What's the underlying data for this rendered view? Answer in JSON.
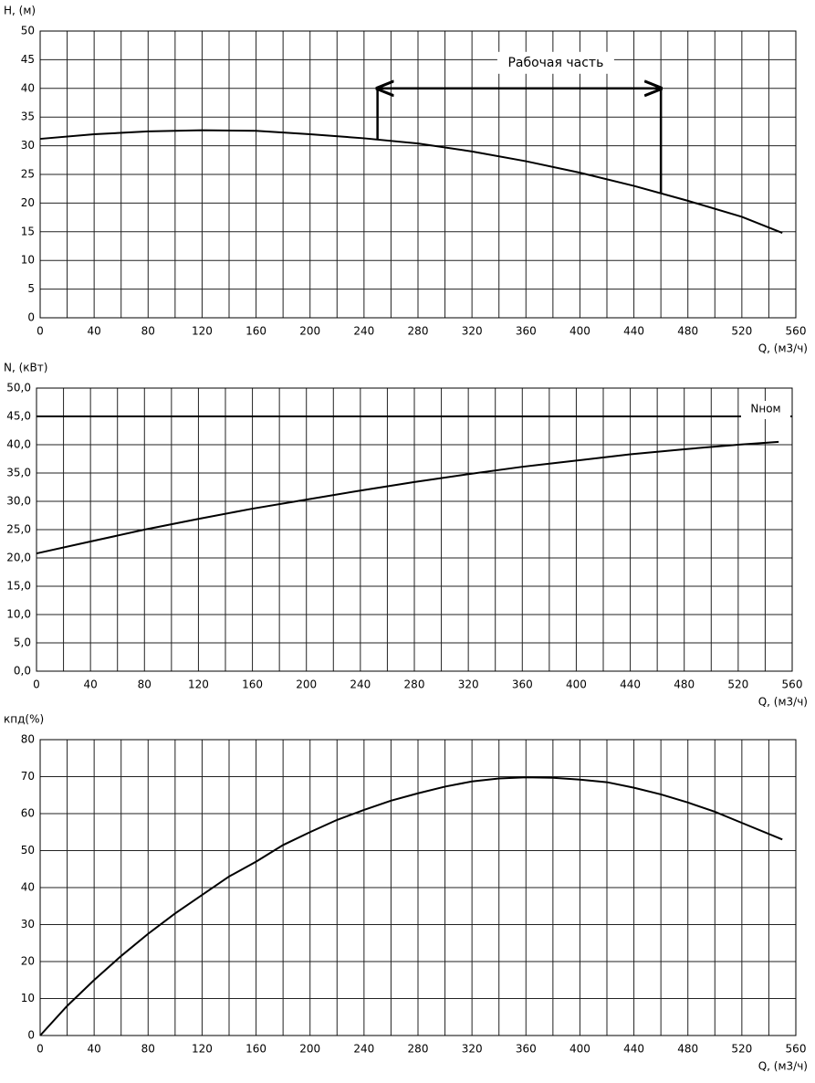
{
  "chart_data": [
    {
      "type": "line",
      "y_label": "H, (м)",
      "x_label": "Q, (м3/ч)",
      "x": [
        0,
        40,
        80,
        120,
        160,
        200,
        240,
        280,
        320,
        360,
        400,
        440,
        480,
        520,
        550
      ],
      "series": [
        {
          "color": "#000000",
          "values": [
            31.2,
            32,
            32.5,
            32.7,
            32.6,
            32,
            31.3,
            30.4,
            29,
            27.3,
            25.3,
            23,
            20.4,
            17.6,
            14.8
          ]
        }
      ],
      "xlim": [
        0,
        560
      ],
      "xticks": [
        0,
        {
          "value": 20,
          "label": null
        },
        40,
        {
          "value": 60,
          "label": null
        },
        80,
        {
          "value": 100,
          "label": null
        },
        120,
        {
          "value": 140,
          "label": null
        },
        160,
        {
          "value": 180,
          "label": null
        },
        200,
        {
          "value": 220,
          "label": null
        },
        240,
        {
          "value": 260,
          "label": null
        },
        280,
        {
          "value": 300,
          "label": null
        },
        320,
        {
          "value": 340,
          "label": null
        },
        360,
        {
          "value": 380,
          "label": null
        },
        400,
        {
          "value": 420,
          "label": null
        },
        440,
        {
          "value": 460,
          "label": null
        },
        480,
        {
          "value": 500,
          "label": null
        },
        520,
        {
          "value": 540,
          "label": null
        },
        560
      ],
      "ylim": [
        0,
        50
      ],
      "yticks": [
        0,
        5,
        10,
        15,
        20,
        25,
        30,
        35,
        40,
        45,
        50
      ],
      "grid": true,
      "annotations": [
        {
          "text": "Рабочая часть",
          "x": [
            250,
            460
          ],
          "y": 40
        }
      ]
    },
    {
      "type": "line",
      "y_label": "N, (кВт)",
      "x_label": "Q, (м3/ч)",
      "x": [
        0,
        40,
        80,
        120,
        160,
        200,
        240,
        280,
        320,
        360,
        400,
        440,
        480,
        520,
        550
      ],
      "series": [
        {
          "color": "#000000",
          "values": [
            20.8,
            22.9,
            25,
            26.9,
            28.7,
            30.3,
            31.9,
            33.4,
            34.8,
            36.1,
            37.2,
            38.3,
            39.2,
            40,
            40.5
          ]
        }
      ],
      "xlim": [
        0,
        560
      ],
      "xticks": [
        0,
        {
          "value": 20,
          "label": null
        },
        40,
        {
          "value": 60,
          "label": null
        },
        80,
        {
          "value": 100,
          "label": null
        },
        120,
        {
          "value": 140,
          "label": null
        },
        160,
        {
          "value": 180,
          "label": null
        },
        200,
        {
          "value": 220,
          "label": null
        },
        240,
        {
          "value": 260,
          "label": null
        },
        280,
        {
          "value": 300,
          "label": null
        },
        320,
        {
          "value": 340,
          "label": null
        },
        360,
        {
          "value": 380,
          "label": null
        },
        400,
        {
          "value": 420,
          "label": null
        },
        440,
        {
          "value": 460,
          "label": null
        },
        480,
        {
          "value": 500,
          "label": null
        },
        520,
        {
          "value": 540,
          "label": null
        },
        560
      ],
      "ylim": [
        0,
        50
      ],
      "yticks": [
        {
          "value": 0,
          "label": "0,0"
        },
        {
          "value": 5,
          "label": "5,0"
        },
        {
          "value": 10,
          "label": "10,0"
        },
        {
          "value": 15,
          "label": "15,0"
        },
        {
          "value": 20,
          "label": "20,0"
        },
        {
          "value": 25,
          "label": "25,0"
        },
        {
          "value": 30,
          "label": "30,0"
        },
        {
          "value": 35,
          "label": "35,0"
        },
        {
          "value": 40,
          "label": "40,0"
        },
        {
          "value": 45,
          "label": "45,0"
        },
        {
          "value": 50,
          "label": "50,0"
        }
      ],
      "grid": true,
      "reference_lines": [
        {
          "label": "Nном",
          "y": 45
        }
      ]
    },
    {
      "type": "line",
      "y_label": "кпд(%)",
      "x_label": "Q, (м3/ч)",
      "x": [
        0,
        20,
        40,
        60,
        80,
        100,
        120,
        140,
        160,
        180,
        200,
        220,
        240,
        260,
        280,
        300,
        320,
        340,
        360,
        380,
        400,
        420,
        440,
        460,
        480,
        500,
        520,
        550
      ],
      "series": [
        {
          "color": "#000000",
          "values": [
            0,
            8,
            15,
            21.5,
            27.5,
            33,
            38,
            43,
            47,
            51.5,
            55,
            58.3,
            61,
            63.5,
            65.5,
            67.3,
            68.7,
            69.5,
            69.8,
            69.7,
            69.2,
            68.5,
            67,
            65.2,
            63,
            60.5,
            57.5,
            53
          ]
        }
      ],
      "xlim": [
        0,
        560
      ],
      "xticks": [
        0,
        {
          "value": 20,
          "label": null
        },
        40,
        {
          "value": 60,
          "label": null
        },
        80,
        {
          "value": 100,
          "label": null
        },
        120,
        {
          "value": 140,
          "label": null
        },
        160,
        {
          "value": 180,
          "label": null
        },
        200,
        {
          "value": 220,
          "label": null
        },
        240,
        {
          "value": 260,
          "label": null
        },
        280,
        {
          "value": 300,
          "label": null
        },
        320,
        {
          "value": 340,
          "label": null
        },
        360,
        {
          "value": 380,
          "label": null
        },
        400,
        {
          "value": 420,
          "label": null
        },
        440,
        {
          "value": 460,
          "label": null
        },
        480,
        {
          "value": 500,
          "label": null
        },
        520,
        {
          "value": 540,
          "label": null
        },
        560
      ],
      "ylim": [
        0,
        80
      ],
      "yticks": [
        0,
        10,
        20,
        30,
        40,
        50,
        60,
        70,
        80
      ],
      "grid": true
    }
  ]
}
